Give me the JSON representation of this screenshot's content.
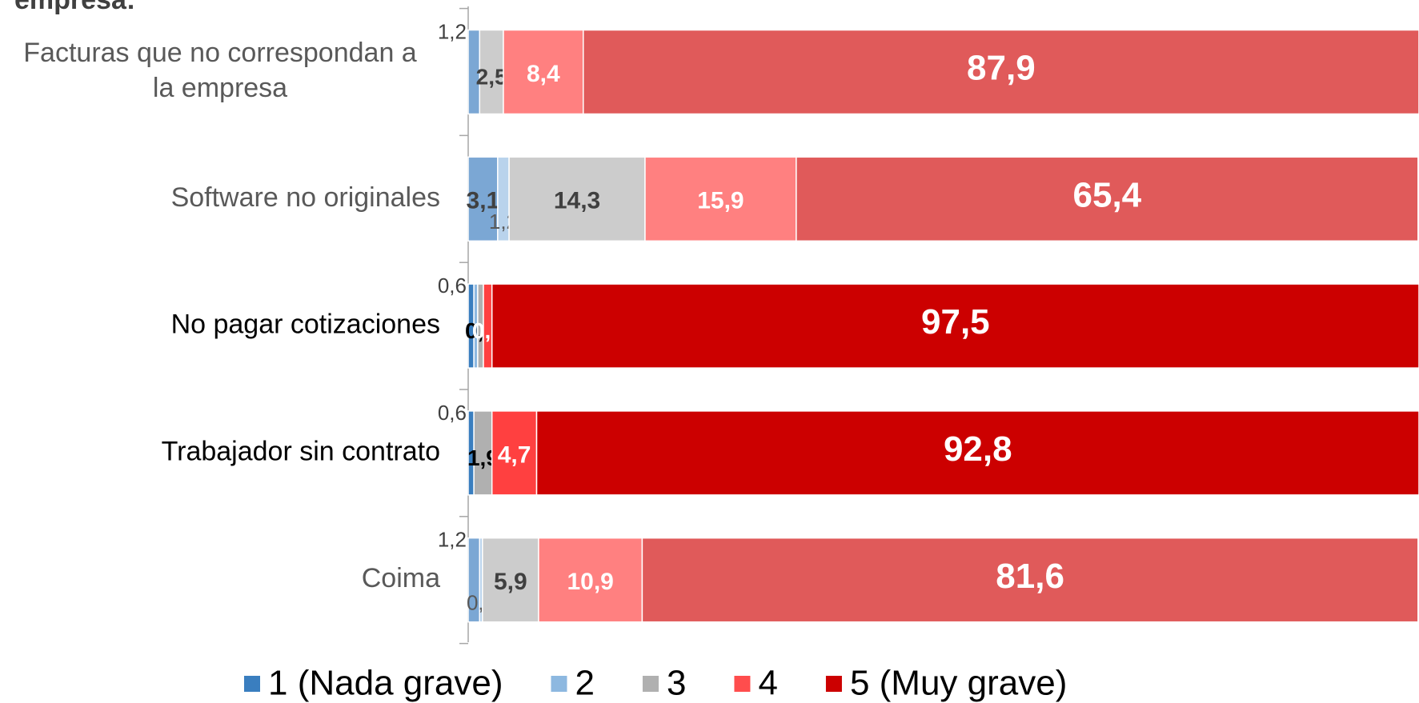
{
  "chart_data": {
    "type": "bar",
    "orientation": "horizontal",
    "stacked": true,
    "title": "empresa:",
    "categories": [
      "Facturas que no correspondan a la empresa",
      "Software no originales",
      "No pagar cotizaciones",
      "Trabajador sin contrato",
      "Coima"
    ],
    "category_colors": [
      "#595959",
      "#595959",
      "#000000",
      "#000000",
      "#595959"
    ],
    "xlim": [
      0,
      100
    ],
    "legend": "bottom",
    "series": [
      {
        "name": "1 (Nada grave)",
        "color": "#3a7ebf",
        "colors": [
          "#7ba7d4",
          "#7ba7d4",
          "#3a7ebf",
          "#3a7ebf",
          "#7ba7d4"
        ],
        "values": [
          1.2,
          3.1,
          0.6,
          0.6,
          1.2
        ],
        "value_labels": [
          "1,2",
          "3,1",
          "0,6",
          "0,6",
          "1,2"
        ]
      },
      {
        "name": "2",
        "color": "#8db8e0",
        "colors": [
          "#b9d3ec",
          "#b9d3ec",
          "#8db8e0",
          "#8db8e0",
          "#b9d3ec"
        ],
        "values": [
          null,
          1.2,
          0.4,
          null,
          0.3
        ],
        "value_labels": [
          null,
          "1,2",
          null,
          null,
          "0,3"
        ]
      },
      {
        "name": "3",
        "color": "#b0b0b0",
        "colors": [
          "#cccccc",
          "#cccccc",
          "#b0b0b0",
          "#b0b0b0",
          "#cccccc"
        ],
        "values": [
          2.5,
          14.3,
          0.6,
          1.9,
          5.9
        ],
        "value_labels": [
          "2,5",
          "14,3",
          "0,6",
          "1,9",
          "5,9"
        ]
      },
      {
        "name": "4",
        "color": "#ff4d4d",
        "colors": [
          "#ff8080",
          "#ff8080",
          "#ff4040",
          "#ff4040",
          "#ff8080"
        ],
        "values": [
          8.4,
          15.9,
          0.9,
          4.7,
          10.9
        ],
        "value_labels": [
          "8,4",
          "15,9",
          "0,9",
          "4,7",
          "10,9"
        ]
      },
      {
        "name": "5 (Muy grave)",
        "color": "#cc0000",
        "colors": [
          "#e05a5a",
          "#e05a5a",
          "#cc0000",
          "#cc0000",
          "#e05a5a"
        ],
        "values": [
          87.9,
          65.4,
          97.5,
          92.8,
          81.6
        ],
        "value_labels": [
          "87,9",
          "65,4",
          "97,5",
          "92,8",
          "81,6"
        ]
      }
    ]
  }
}
